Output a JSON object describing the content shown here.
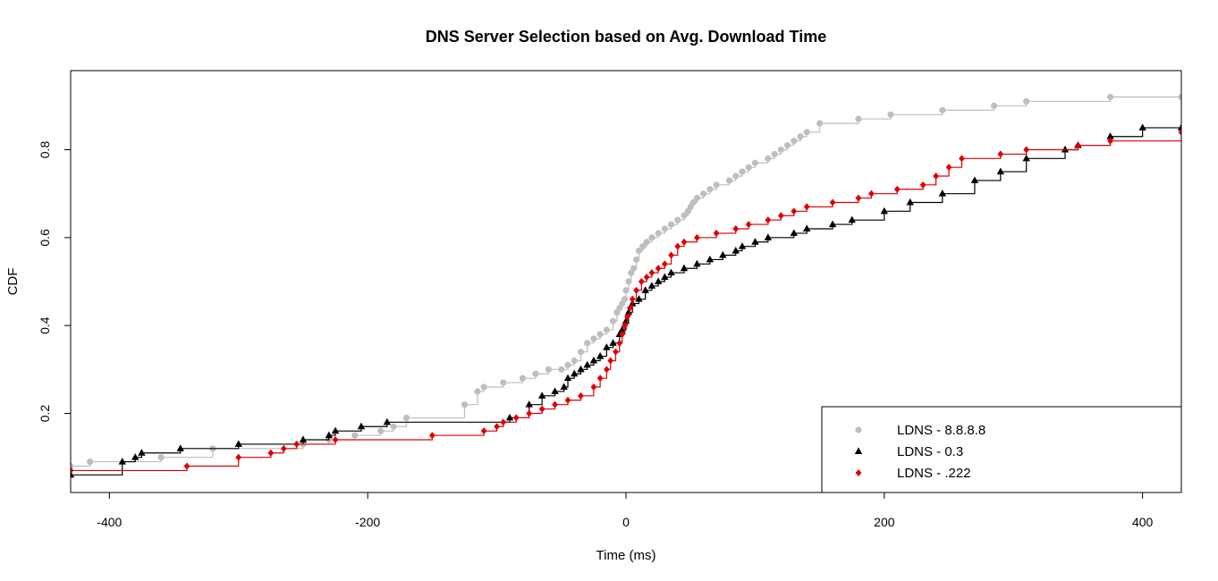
{
  "chart_data": {
    "type": "line",
    "subtype": "empirical-cdf-step",
    "title": "DNS Server Selection based on Avg. Download Time",
    "xlabel": "Time (ms)",
    "ylabel": "CDF",
    "xlim": [
      -430,
      430
    ],
    "ylim": [
      0.02,
      0.98
    ],
    "x_ticks": [
      -400,
      -200,
      0,
      200,
      400
    ],
    "x_tick_labels": [
      "-400",
      "-200",
      "0",
      "200",
      "400"
    ],
    "y_ticks": [
      0.2,
      0.4,
      0.6,
      0.8
    ],
    "y_tick_labels": [
      "0.2",
      "0.4",
      "0.6",
      "0.8"
    ],
    "grid": false,
    "legend_position": "bottom-right",
    "series": [
      {
        "name": "LDNS - 8.8.8.8",
        "color": "#bebebe",
        "marker": "circle",
        "x": [
          -430,
          -415,
          -360,
          -320,
          -250,
          -230,
          -210,
          -190,
          -180,
          -170,
          -125,
          -115,
          -110,
          -95,
          -80,
          -70,
          -60,
          -50,
          -45,
          -40,
          -35,
          -30,
          -25,
          -20,
          -15,
          -10,
          -7,
          -5,
          -3,
          -1,
          0,
          2,
          4,
          6,
          8,
          10,
          13,
          16,
          20,
          25,
          30,
          35,
          40,
          45,
          48,
          50,
          52,
          55,
          60,
          65,
          70,
          80,
          85,
          90,
          95,
          100,
          110,
          115,
          120,
          125,
          130,
          135,
          140,
          150,
          180,
          205,
          245,
          285,
          310,
          375,
          430
        ],
        "y": [
          0.08,
          0.09,
          0.1,
          0.12,
          0.13,
          0.14,
          0.15,
          0.16,
          0.17,
          0.19,
          0.22,
          0.25,
          0.26,
          0.27,
          0.28,
          0.29,
          0.3,
          0.3,
          0.31,
          0.32,
          0.34,
          0.36,
          0.37,
          0.38,
          0.39,
          0.41,
          0.43,
          0.44,
          0.45,
          0.46,
          0.48,
          0.5,
          0.52,
          0.53,
          0.55,
          0.57,
          0.58,
          0.59,
          0.6,
          0.61,
          0.62,
          0.63,
          0.64,
          0.65,
          0.66,
          0.67,
          0.68,
          0.69,
          0.7,
          0.71,
          0.72,
          0.73,
          0.74,
          0.75,
          0.76,
          0.77,
          0.78,
          0.79,
          0.8,
          0.81,
          0.82,
          0.83,
          0.84,
          0.86,
          0.87,
          0.88,
          0.89,
          0.9,
          0.91,
          0.92,
          0.92
        ]
      },
      {
        "name": "LDNS - 0.3",
        "color": "#000000",
        "marker": "triangle",
        "x": [
          -430,
          -390,
          -380,
          -375,
          -345,
          -300,
          -250,
          -230,
          -225,
          -205,
          -185,
          -90,
          -75,
          -65,
          -55,
          -48,
          -45,
          -40,
          -35,
          -30,
          -25,
          -20,
          -15,
          -10,
          -5,
          -3,
          0,
          2,
          5,
          10,
          15,
          20,
          25,
          30,
          35,
          45,
          55,
          65,
          75,
          85,
          90,
          100,
          110,
          130,
          140,
          160,
          175,
          200,
          220,
          245,
          270,
          290,
          310,
          340,
          350,
          375,
          400,
          430
        ],
        "y": [
          0.06,
          0.09,
          0.1,
          0.11,
          0.12,
          0.13,
          0.14,
          0.15,
          0.16,
          0.17,
          0.18,
          0.19,
          0.22,
          0.24,
          0.25,
          0.26,
          0.28,
          0.29,
          0.3,
          0.31,
          0.32,
          0.33,
          0.35,
          0.36,
          0.38,
          0.39,
          0.41,
          0.43,
          0.45,
          0.46,
          0.48,
          0.49,
          0.5,
          0.51,
          0.52,
          0.53,
          0.54,
          0.55,
          0.56,
          0.57,
          0.58,
          0.59,
          0.6,
          0.61,
          0.62,
          0.63,
          0.64,
          0.66,
          0.68,
          0.7,
          0.73,
          0.75,
          0.78,
          0.8,
          0.81,
          0.83,
          0.85,
          0.85
        ]
      },
      {
        "name": "LDNS - .222",
        "color": "#e00000",
        "marker": "diamond",
        "x": [
          -430,
          -340,
          -300,
          -275,
          -265,
          -255,
          -225,
          -150,
          -110,
          -100,
          -95,
          -85,
          -75,
          -65,
          -55,
          -45,
          -35,
          -25,
          -20,
          -15,
          -12,
          -8,
          -5,
          -3,
          -1,
          1,
          3,
          5,
          8,
          12,
          16,
          20,
          25,
          30,
          35,
          40,
          45,
          55,
          70,
          85,
          95,
          110,
          120,
          130,
          140,
          160,
          180,
          190,
          210,
          230,
          240,
          250,
          260,
          290,
          310,
          350,
          375,
          430
        ],
        "y": [
          0.07,
          0.08,
          0.1,
          0.11,
          0.12,
          0.13,
          0.14,
          0.15,
          0.16,
          0.17,
          0.18,
          0.19,
          0.2,
          0.21,
          0.22,
          0.23,
          0.24,
          0.26,
          0.28,
          0.3,
          0.32,
          0.34,
          0.36,
          0.38,
          0.4,
          0.42,
          0.44,
          0.46,
          0.48,
          0.5,
          0.51,
          0.52,
          0.53,
          0.54,
          0.56,
          0.58,
          0.59,
          0.6,
          0.61,
          0.62,
          0.63,
          0.64,
          0.65,
          0.66,
          0.67,
          0.68,
          0.69,
          0.7,
          0.71,
          0.72,
          0.74,
          0.76,
          0.78,
          0.79,
          0.8,
          0.81,
          0.82,
          0.84
        ]
      }
    ]
  }
}
